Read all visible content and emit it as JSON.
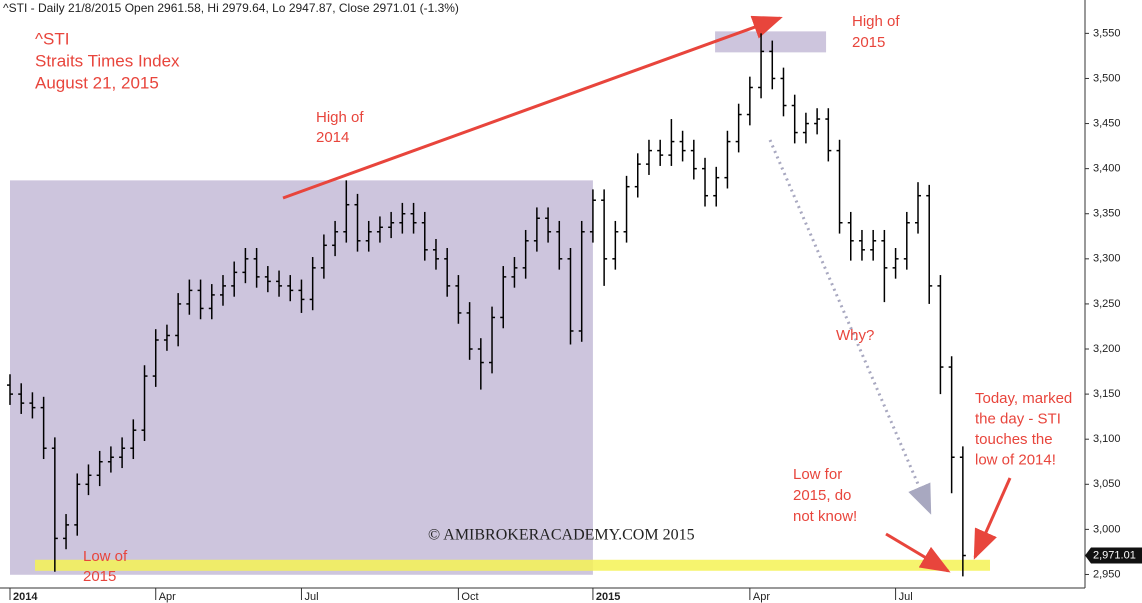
{
  "chart_data": {
    "type": "ohlc",
    "header": "^STI - Daily 21/8/2015 Open 2961.58, Hi 2979.64, Lo 2947.87, Close 2971.01 (-1.3%)",
    "title": [
      "^STI",
      "Straits Times Index",
      "August 21, 2015"
    ],
    "watermark": "© AMIBROKERACADEMY.COM   2015",
    "annotations": [
      {
        "lines": [
          "High of",
          "2014"
        ]
      },
      {
        "lines": [
          "High of",
          "2015"
        ]
      },
      {
        "lines": [
          "Why?"
        ]
      },
      {
        "lines": [
          "Low of",
          "2015"
        ]
      },
      {
        "lines": [
          "Low for",
          "2015, do",
          "not know!"
        ]
      },
      {
        "lines": [
          "Today, marked",
          "the day - STI",
          "touches the",
          "low of 2014!"
        ]
      }
    ],
    "categories": [
      "2014",
      null,
      null,
      null,
      null,
      null,
      null,
      null,
      null,
      null,
      null,
      null,
      null,
      "Apr",
      null,
      null,
      null,
      null,
      null,
      null,
      null,
      null,
      null,
      null,
      null,
      null,
      "Jul",
      null,
      null,
      null,
      null,
      null,
      null,
      null,
      null,
      null,
      null,
      null,
      null,
      null,
      "Oct",
      null,
      null,
      null,
      null,
      null,
      null,
      null,
      null,
      null,
      null,
      null,
      "2015",
      null,
      null,
      null,
      null,
      null,
      null,
      null,
      null,
      null,
      null,
      null,
      null,
      null,
      "Apr",
      null,
      null,
      null,
      null,
      null,
      null,
      null,
      null,
      null,
      null,
      null,
      null,
      "Jul",
      null,
      null,
      null,
      null,
      null,
      null
    ],
    "open": [
      3160,
      3150,
      3140,
      3135,
      3090,
      2990,
      3005,
      3050,
      3060,
      3075,
      3080,
      3090,
      3110,
      3170,
      3210,
      3215,
      3250,
      3265,
      3245,
      3260,
      3270,
      3285,
      3300,
      3280,
      3275,
      3270,
      3265,
      3255,
      3290,
      3315,
      3330,
      3360,
      3320,
      3330,
      3335,
      3340,
      3350,
      3340,
      3310,
      3300,
      3270,
      3240,
      3200,
      3185,
      3235,
      3280,
      3290,
      3320,
      3345,
      3330,
      3300,
      3220,
      3330,
      3365,
      3300,
      3330,
      3380,
      3405,
      3420,
      3415,
      3430,
      3420,
      3400,
      3370,
      3390,
      3430,
      3460,
      3490,
      3530,
      3500,
      3470,
      3440,
      3450,
      3455,
      3420,
      3340,
      3320,
      3310,
      3320,
      3290,
      3300,
      3340,
      3370,
      3270,
      3180,
      3080
    ],
    "high": [
      3172,
      3162,
      3152,
      3147,
      3102,
      3017,
      3062,
      3072,
      3087,
      3092,
      3102,
      3122,
      3182,
      3222,
      3227,
      3262,
      3277,
      3277,
      3272,
      3282,
      3297,
      3312,
      3312,
      3292,
      3287,
      3282,
      3277,
      3302,
      3327,
      3342,
      3387,
      3372,
      3342,
      3347,
      3352,
      3362,
      3362,
      3352,
      3322,
      3312,
      3282,
      3252,
      3212,
      3247,
      3292,
      3302,
      3332,
      3357,
      3357,
      3342,
      3312,
      3342,
      3377,
      3377,
      3342,
      3392,
      3417,
      3432,
      3432,
      3455,
      3442,
      3432,
      3412,
      3402,
      3442,
      3472,
      3502,
      3550,
      3542,
      3512,
      3482,
      3462,
      3467,
      3467,
      3432,
      3352,
      3332,
      3332,
      3332,
      3312,
      3352,
      3385,
      3382,
      3282,
      3192,
      3092
    ],
    "low": [
      3138,
      3128,
      3123,
      3078,
      2953,
      2978,
      2993,
      3038,
      3048,
      3063,
      3068,
      3078,
      3098,
      3158,
      3198,
      3203,
      3238,
      3233,
      3233,
      3248,
      3258,
      3273,
      3268,
      3263,
      3258,
      3253,
      3240,
      3243,
      3278,
      3303,
      3318,
      3308,
      3308,
      3318,
      3323,
      3328,
      3328,
      3298,
      3288,
      3258,
      3228,
      3188,
      3155,
      3173,
      3223,
      3268,
      3278,
      3308,
      3318,
      3288,
      3205,
      3208,
      3318,
      3270,
      3288,
      3318,
      3368,
      3393,
      3403,
      3403,
      3408,
      3388,
      3358,
      3358,
      3378,
      3418,
      3448,
      3478,
      3488,
      3458,
      3428,
      3428,
      3438,
      3408,
      3328,
      3298,
      3298,
      3298,
      3252,
      3278,
      3288,
      3328,
      3250,
      3150,
      3040,
      2947.87
    ],
    "close": [
      3150,
      3140,
      3135,
      3090,
      2990,
      3005,
      3050,
      3060,
      3075,
      3080,
      3090,
      3110,
      3170,
      3210,
      3215,
      3250,
      3265,
      3245,
      3260,
      3270,
      3285,
      3300,
      3280,
      3275,
      3270,
      3265,
      3255,
      3290,
      3315,
      3330,
      3360,
      3320,
      3330,
      3335,
      3340,
      3350,
      3340,
      3310,
      3300,
      3270,
      3240,
      3200,
      3185,
      3235,
      3280,
      3290,
      3320,
      3345,
      3330,
      3300,
      3220,
      3330,
      3365,
      3300,
      3330,
      3380,
      3405,
      3420,
      3415,
      3430,
      3420,
      3400,
      3370,
      3390,
      3430,
      3460,
      3490,
      3530,
      3500,
      3470,
      3440,
      3450,
      3455,
      3420,
      3340,
      3320,
      3310,
      3320,
      3290,
      3300,
      3340,
      3370,
      3270,
      3180,
      3080,
      2971.01
    ],
    "last_close_label": "2,971.01",
    "color": "#000000",
    "ylim": [
      2935,
      3587
    ],
    "yticks": [
      {
        "value": 2950,
        "label": "2,950"
      },
      {
        "value": 3000,
        "label": "3,000"
      },
      {
        "value": 3050,
        "label": "3,050"
      },
      {
        "value": 3100,
        "label": "3,100"
      },
      {
        "value": 3150,
        "label": "3,150"
      },
      {
        "value": 3200,
        "label": "3,200"
      },
      {
        "value": 3250,
        "label": "3,250"
      },
      {
        "value": 3300,
        "label": "3,300"
      },
      {
        "value": 3350,
        "label": "3,350"
      },
      {
        "value": 3400,
        "label": "3,400"
      },
      {
        "value": 3450,
        "label": "3,450"
      },
      {
        "value": 3500,
        "label": "3,500"
      },
      {
        "value": 3550,
        "label": "3,550"
      }
    ]
  }
}
